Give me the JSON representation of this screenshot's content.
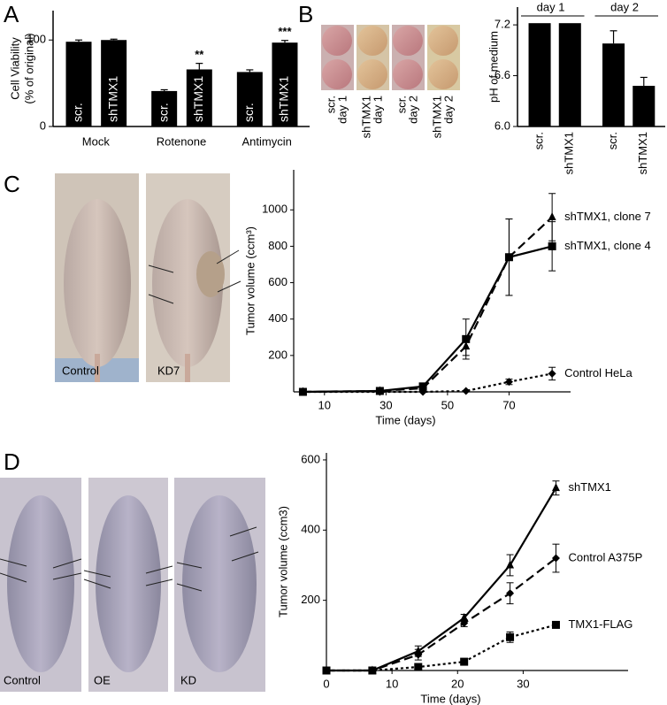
{
  "panel_labels": [
    "A",
    "B",
    "C",
    "D"
  ],
  "well_labels": [
    [
      "scr.",
      "day 1"
    ],
    [
      "shTMX1",
      "day 1"
    ],
    [
      "scr.",
      "day 2"
    ],
    [
      "shTMX1",
      "day 2"
    ]
  ],
  "photo_labels_c": [
    "Control",
    "KD7"
  ],
  "photo_labels_d": [
    "Control",
    "OE",
    "KD"
  ],
  "chart_data": [
    {
      "type": "bar",
      "ylabel": [
        "Cell Viability",
        "(% of original)"
      ],
      "categories": [
        "Mock",
        "Rotenone",
        "Antimycin"
      ],
      "category_label_position": "below",
      "bar_label_position": "inside",
      "series": [
        {
          "name": "scr.",
          "color": "#000000",
          "values": [
            98,
            41,
            63
          ],
          "errors": [
            2,
            1.5,
            2.5
          ]
        },
        {
          "name": "shTMX1",
          "color": "#000000",
          "values": [
            100,
            66,
            97
          ],
          "errors": [
            1,
            7,
            2.5
          ],
          "significance": [
            null,
            "**",
            "***"
          ]
        }
      ],
      "ylim": [
        0,
        134
      ],
      "yticks": [
        0,
        100
      ]
    },
    {
      "type": "bar",
      "ylabel": [
        "pH of medium"
      ],
      "categories": [
        "day 1",
        "day 2"
      ],
      "category_label_position": "above",
      "bar_label_position": "below",
      "series": [
        {
          "name": "scr.",
          "color": "#000000",
          "values": [
            7.22,
            6.98
          ],
          "errors": [
            0,
            0.15
          ]
        },
        {
          "name": "shTMX1",
          "color": "#000000",
          "values": [
            7.22,
            6.48
          ],
          "errors": [
            0,
            0.1
          ]
        }
      ],
      "ylim": [
        6.0,
        7.41
      ],
      "yticks": [
        {
          "value": 6,
          "label": "6.0"
        },
        6.6,
        7.2
      ]
    },
    {
      "type": "line",
      "xlabel": "Time (days)",
      "ylabel": [
        "Tumor volume (ccm³)"
      ],
      "x": [
        3,
        28,
        42,
        56,
        70,
        84
      ],
      "xlim": [
        0,
        90
      ],
      "xticks": [
        10,
        30,
        50,
        70
      ],
      "ylim": [
        0,
        1220
      ],
      "yticks": [
        200,
        400,
        600,
        800,
        1000
      ],
      "series": [
        {
          "name": "shTMX1, clone 7",
          "color": "#000000",
          "marker": "triangle",
          "dash": "dashed",
          "values": [
            0,
            5,
            20,
            250,
            740,
            960
          ],
          "errors": [
            0,
            0,
            5,
            50,
            210,
            130
          ]
        },
        {
          "name": "shTMX1, clone 4",
          "color": "#000000",
          "marker": "square",
          "dash": "solid",
          "values": [
            0,
            5,
            30,
            290,
            740,
            800
          ],
          "errors": [
            0,
            0,
            5,
            110,
            210,
            135
          ]
        },
        {
          "name": "Control HeLa",
          "color": "#000000",
          "marker": "diamond",
          "dash": "dotted",
          "values": [
            0,
            0,
            0,
            5,
            55,
            100
          ],
          "errors": [
            0,
            0,
            0,
            0,
            15,
            35
          ]
        }
      ]
    },
    {
      "type": "line",
      "xlabel": "Time (days)",
      "ylabel": [
        "Tumor volume (ccm3)"
      ],
      "x": [
        0,
        7,
        14,
        21,
        28,
        35
      ],
      "xlim": [
        0,
        46
      ],
      "xticks": [
        0,
        10,
        20,
        30
      ],
      "ylim": [
        0,
        620
      ],
      "yticks": [
        200,
        400,
        600
      ],
      "series": [
        {
          "name": "shTMX1",
          "color": "#000000",
          "marker": "triangle",
          "dash": "solid",
          "values": [
            0,
            0,
            55,
            150,
            300,
            520
          ],
          "errors": [
            0,
            0,
            15,
            10,
            30,
            20
          ]
        },
        {
          "name": "Control A375P",
          "color": "#000000",
          "marker": "diamond",
          "dash": "dashed",
          "values": [
            0,
            0,
            45,
            135,
            220,
            320
          ],
          "errors": [
            0,
            0,
            15,
            10,
            30,
            40
          ]
        },
        {
          "name": "TMX1-FLAG",
          "color": "#000000",
          "marker": "square",
          "dash": "dotted",
          "values": [
            0,
            0,
            10,
            25,
            95,
            130
          ],
          "errors": [
            0,
            0,
            3,
            5,
            15,
            5
          ]
        }
      ]
    }
  ]
}
